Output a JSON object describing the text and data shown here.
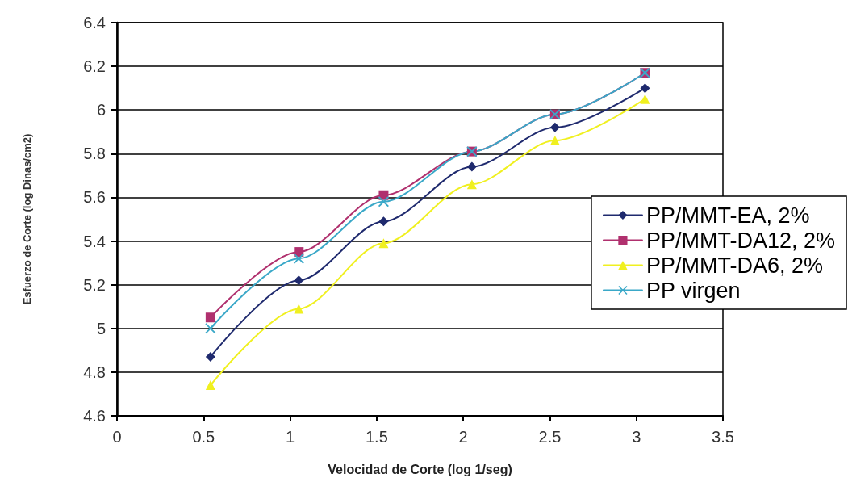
{
  "chart_data": {
    "type": "line",
    "xlabel": "Velocidad de Corte (log 1/seg)",
    "ylabel": "Esfuerzo de Corte (log Dinas/cm2)",
    "x": [
      0.54,
      1.05,
      1.54,
      2.05,
      2.53,
      3.05
    ],
    "series": [
      {
        "name": "PP/MMT-EA, 2%",
        "color": "#1f2a6e",
        "marker": "diamond",
        "values": [
          4.87,
          5.22,
          5.49,
          5.74,
          5.92,
          6.1
        ]
      },
      {
        "name": "PP/MMT-DA12, 2%",
        "color": "#b0306e",
        "marker": "square",
        "values": [
          5.05,
          5.35,
          5.61,
          5.81,
          5.98,
          6.17
        ]
      },
      {
        "name": "PP/MMT-DA6, 2%",
        "color": "#f0f020",
        "marker": "triangle",
        "values": [
          4.74,
          5.09,
          5.39,
          5.66,
          5.86,
          6.05
        ]
      },
      {
        "name": "PP virgen",
        "color": "#3aa8c8",
        "marker": "cross",
        "values": [
          5.0,
          5.32,
          5.58,
          5.81,
          5.98,
          6.17
        ]
      }
    ],
    "xlim": [
      0,
      3.5
    ],
    "xticks": [
      0,
      0.5,
      1,
      1.5,
      2,
      2.5,
      3,
      3.5
    ],
    "ylim": [
      4.6,
      6.4
    ],
    "yticks": [
      4.6,
      4.8,
      5,
      5.2,
      5.4,
      5.6,
      5.8,
      6,
      6.2,
      6.4
    ],
    "grid": "y",
    "legend": "right",
    "line_style": "solid"
  }
}
